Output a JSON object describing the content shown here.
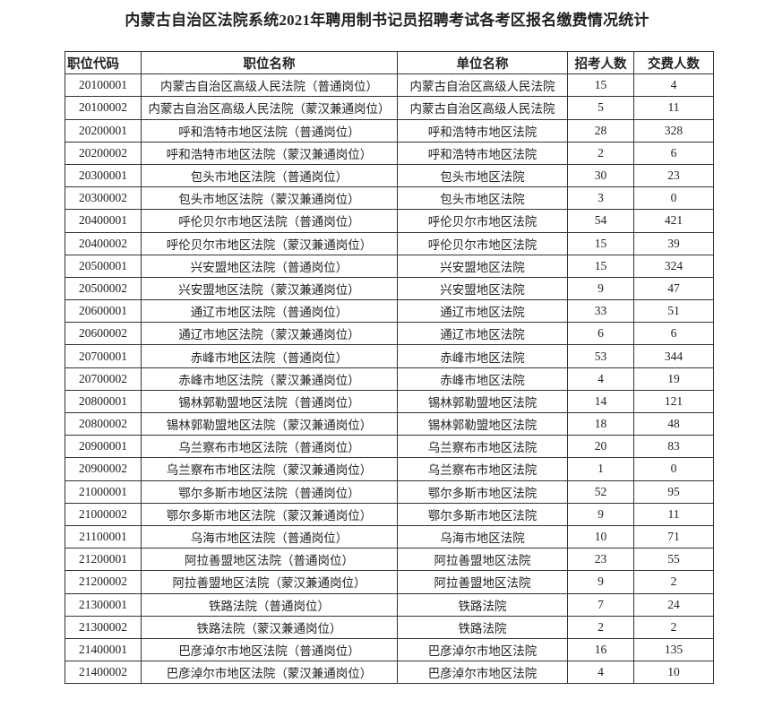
{
  "title": "内蒙古自治区法院系统2021年聘用制书记员招聘考试各考区报名缴费情况统计",
  "columns": [
    "职位代码",
    "职位名称",
    "单位名称",
    "招考人数",
    "交费人数"
  ],
  "rows": [
    [
      "20100001",
      "内蒙古自治区高级人民法院（普通岗位）",
      "内蒙古自治区高级人民法院",
      "15",
      "4"
    ],
    [
      "20100002",
      "内蒙古自治区高级人民法院（蒙汉兼通岗位）",
      "内蒙古自治区高级人民法院",
      "5",
      "11"
    ],
    [
      "20200001",
      "呼和浩特市地区法院（普通岗位）",
      "呼和浩特市地区法院",
      "28",
      "328"
    ],
    [
      "20200002",
      "呼和浩特市地区法院（蒙汉兼通岗位）",
      "呼和浩特市地区法院",
      "2",
      "6"
    ],
    [
      "20300001",
      "包头市地区法院（普通岗位）",
      "包头市地区法院",
      "30",
      "23"
    ],
    [
      "20300002",
      "包头市地区法院（蒙汉兼通岗位）",
      "包头市地区法院",
      "3",
      "0"
    ],
    [
      "20400001",
      "呼伦贝尔市地区法院（普通岗位）",
      "呼伦贝尔市地区法院",
      "54",
      "421"
    ],
    [
      "20400002",
      "呼伦贝尔市地区法院（蒙汉兼通岗位）",
      "呼伦贝尔市地区法院",
      "15",
      "39"
    ],
    [
      "20500001",
      "兴安盟地区法院（普通岗位）",
      "兴安盟地区法院",
      "15",
      "324"
    ],
    [
      "20500002",
      "兴安盟地区法院（蒙汉兼通岗位）",
      "兴安盟地区法院",
      "9",
      "47"
    ],
    [
      "20600001",
      "通辽市地区法院（普通岗位）",
      "通辽市地区法院",
      "33",
      "51"
    ],
    [
      "20600002",
      "通辽市地区法院（蒙汉兼通岗位）",
      "通辽市地区法院",
      "6",
      "6"
    ],
    [
      "20700001",
      "赤峰市地区法院（普通岗位）",
      "赤峰市地区法院",
      "53",
      "344"
    ],
    [
      "20700002",
      "赤峰市地区法院（蒙汉兼通岗位）",
      "赤峰市地区法院",
      "4",
      "19"
    ],
    [
      "20800001",
      "锡林郭勒盟地区法院（普通岗位）",
      "锡林郭勒盟地区法院",
      "14",
      "121"
    ],
    [
      "20800002",
      "锡林郭勒盟地区法院（蒙汉兼通岗位）",
      "锡林郭勒盟地区法院",
      "18",
      "48"
    ],
    [
      "20900001",
      "乌兰察布市地区法院（普通岗位）",
      "乌兰察布市地区法院",
      "20",
      "83"
    ],
    [
      "20900002",
      "乌兰察布市地区法院（蒙汉兼通岗位）",
      "乌兰察布市地区法院",
      "1",
      "0"
    ],
    [
      "21000001",
      "鄂尔多斯市地区法院（普通岗位）",
      "鄂尔多斯市地区法院",
      "52",
      "95"
    ],
    [
      "21000002",
      "鄂尔多斯市地区法院（蒙汉兼通岗位）",
      "鄂尔多斯市地区法院",
      "9",
      "11"
    ],
    [
      "21100001",
      "乌海市地区法院（普通岗位）",
      "乌海市地区法院",
      "10",
      "71"
    ],
    [
      "21200001",
      "阿拉善盟地区法院（普通岗位）",
      "阿拉善盟地区法院",
      "23",
      "55"
    ],
    [
      "21200002",
      "阿拉善盟地区法院（蒙汉兼通岗位）",
      "阿拉善盟地区法院",
      "9",
      "2"
    ],
    [
      "21300001",
      "铁路法院（普通岗位）",
      "铁路法院",
      "7",
      "24"
    ],
    [
      "21300002",
      "铁路法院（蒙汉兼通岗位）",
      "铁路法院",
      "2",
      "2"
    ],
    [
      "21400001",
      "巴彦淖尔市地区法院（普通岗位）",
      "巴彦淖尔市地区法院",
      "16",
      "135"
    ],
    [
      "21400002",
      "巴彦淖尔市地区法院（蒙汉兼通岗位）",
      "巴彦淖尔市地区法院",
      "4",
      "10"
    ]
  ]
}
